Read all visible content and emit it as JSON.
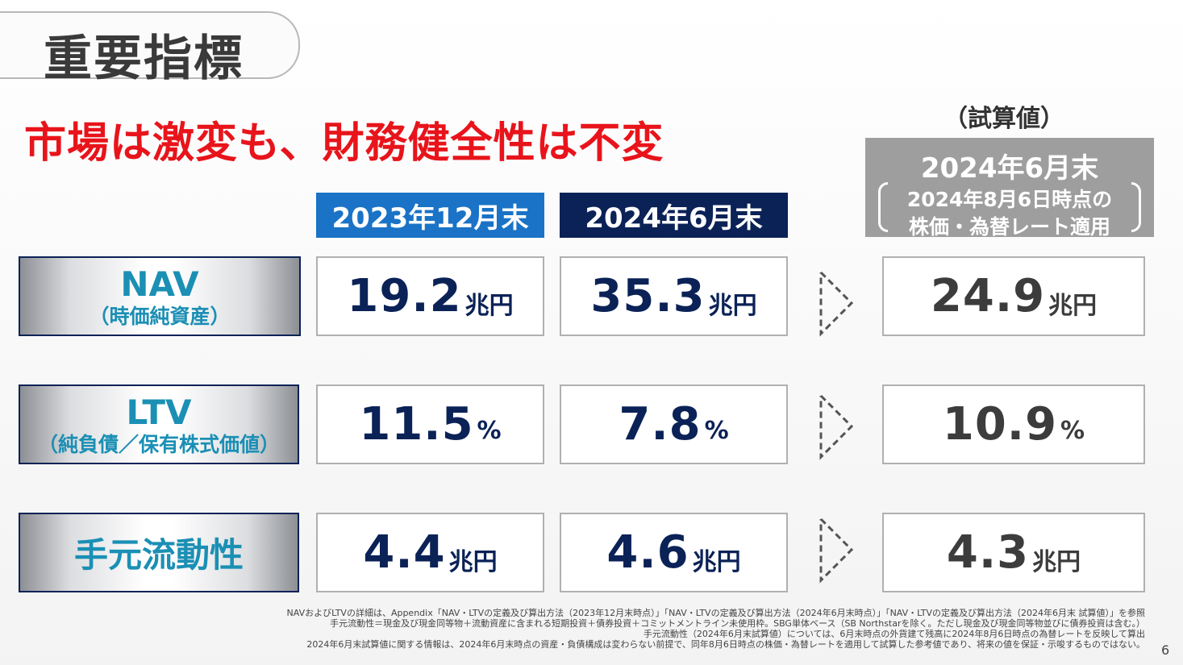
{
  "title": "重要指標",
  "headline": "市場は激変も、財務健全性は不変",
  "estimate_label": "（試算値）",
  "columns": {
    "col1": "2023年12月末",
    "col2": "2024年6月末",
    "col3": {
      "line1": "2024年6月末",
      "line2": "2024年8月6日時点の",
      "line3": "株価・為替レート適用"
    }
  },
  "rows": [
    {
      "label": "NAV",
      "sublabel": "（時価純資産）",
      "values": [
        {
          "num": "19.2",
          "unit": "兆円"
        },
        {
          "num": "35.3",
          "unit": "兆円"
        },
        {
          "num": "24.9",
          "unit": "兆円"
        }
      ]
    },
    {
      "label": "LTV",
      "sublabel": "（純負債／保有株式価値）",
      "values": [
        {
          "num": "11.5",
          "unit": "%"
        },
        {
          "num": "7.8",
          "unit": "%"
        },
        {
          "num": "10.9",
          "unit": "%"
        }
      ]
    },
    {
      "label": "手元流動性",
      "sublabel": "",
      "values": [
        {
          "num": "4.4",
          "unit": "兆円"
        },
        {
          "num": "4.6",
          "unit": "兆円"
        },
        {
          "num": "4.3",
          "unit": "兆円"
        }
      ]
    }
  ],
  "footnotes": [
    "NAVおよびLTVの詳細は、Appendix「NAV・LTVの定義及び算出方法（2023年12月末時点）」「NAV・LTVの定義及び算出方法（2024年6月末時点）」「NAV・LTVの定義及び算出方法（2024年6月末 試算値）」を参照",
    "手元流動性＝現金及び現金同等物＋流動資産に含まれる短期投資＋債券投資＋コミットメントライン未使用枠。SBG単体ベース（SB Northstarを除く。ただし現金及び現金同等物並びに債券投資は含む。）",
    "手元流動性（2024年6月末試算値）については、6月末時点の外貨建て残高に2024年8月6日時点の為替レートを反映して算出",
    "2024年6月末試算値に関する情報は、2024年6月末時点の資産・負債構成は変わらない前提で、同年8月6日時点の株価・為替レートを適用して試算した参考値であり、将来の値を保証・示唆するものではない。"
  ],
  "page_number": "6",
  "colors": {
    "headline": "#e8141b",
    "col1_header": "#1a73c6",
    "col2_header": "#0b2257",
    "col3_header": "#9e9e9e",
    "label_text": "#1b8fb4",
    "value_navy": "#0b2257",
    "value_gray": "#3c3c3c"
  },
  "icons": [
    "dashed-arrow-right-icon"
  ]
}
